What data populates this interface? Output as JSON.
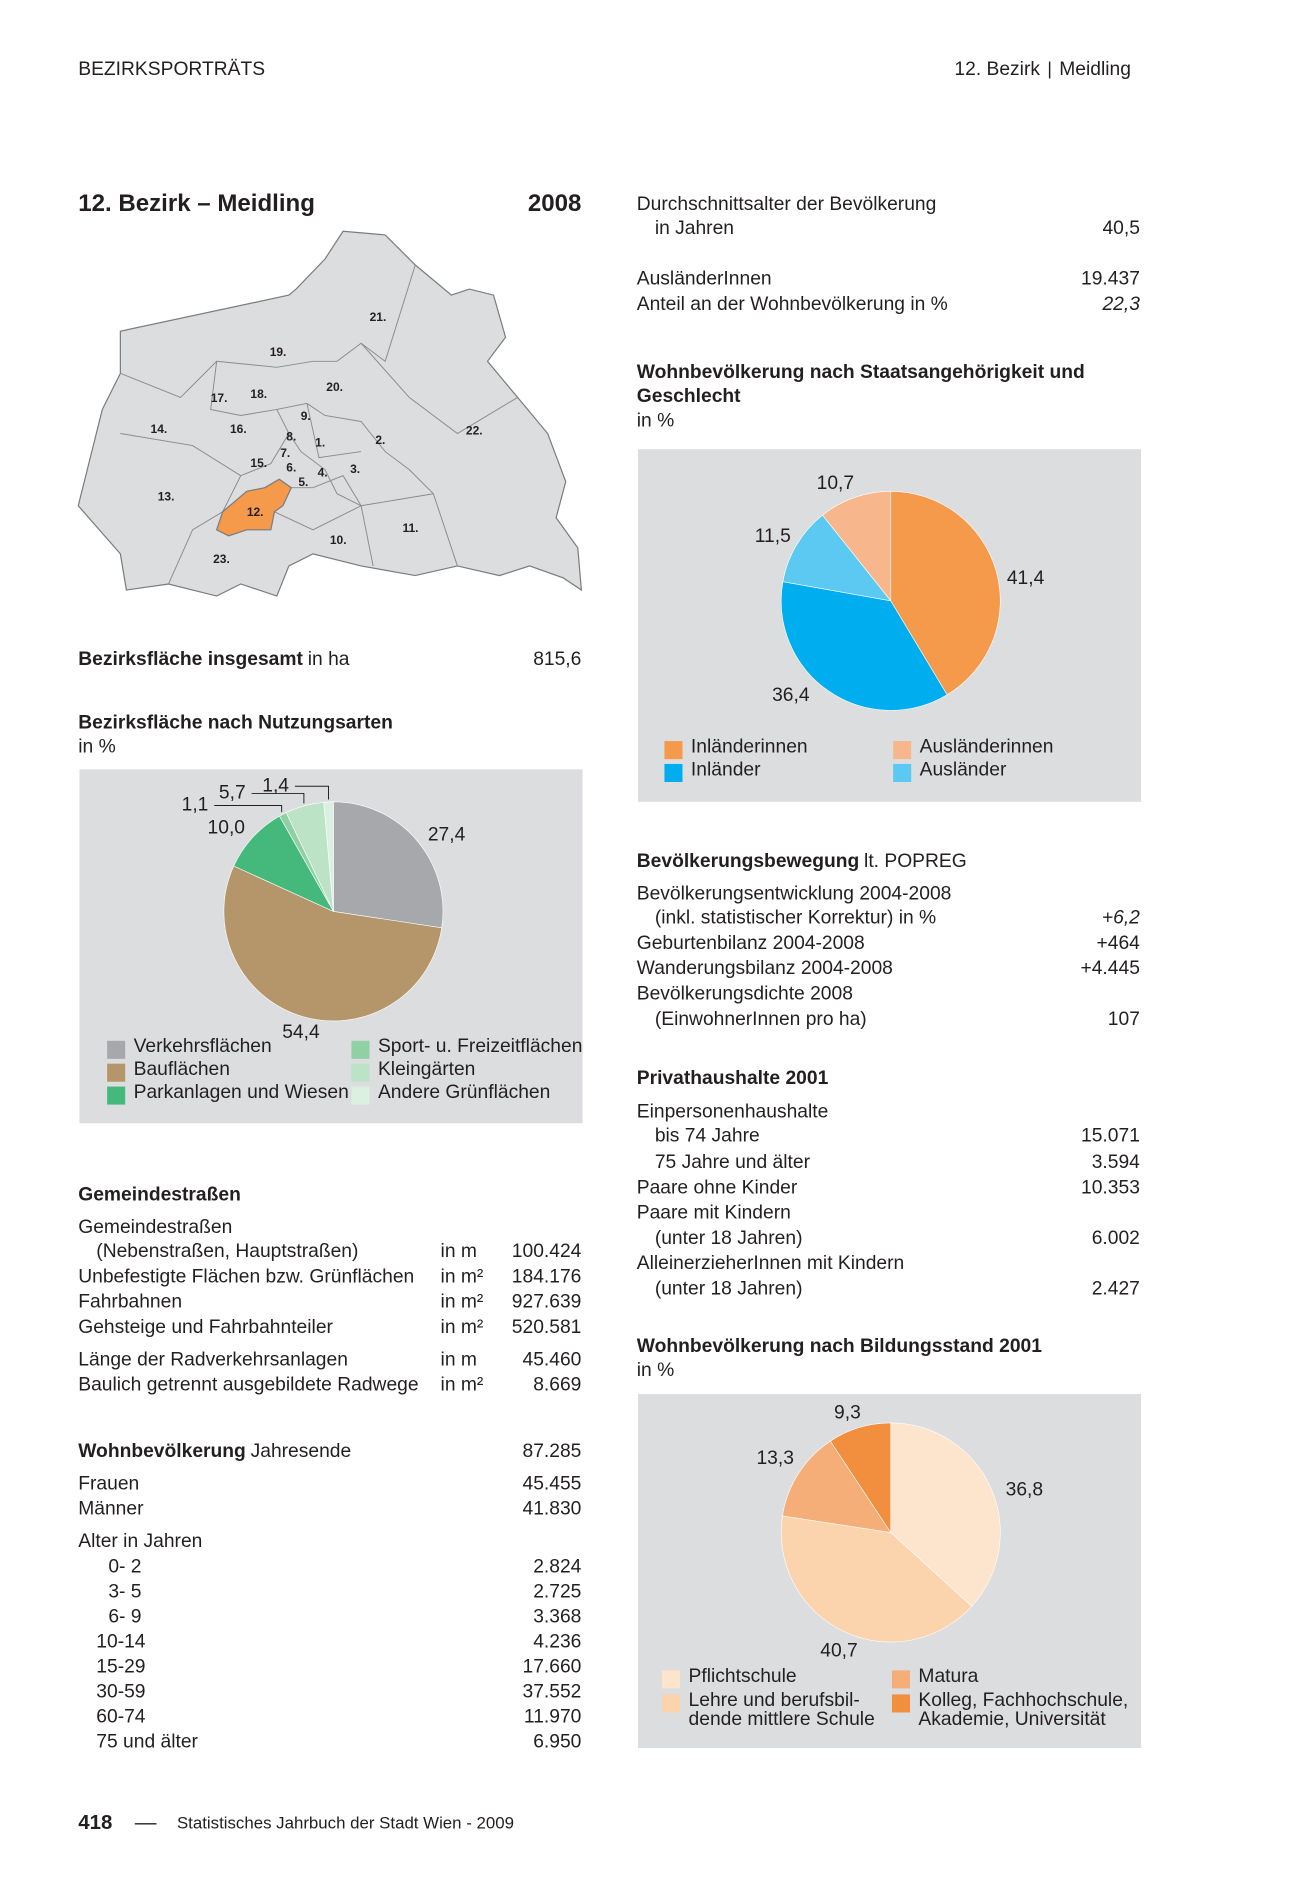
{
  "header": {
    "section": "BEZIRKSPORTRÄTS",
    "district": "12. Bezirk",
    "name": "Meidling"
  },
  "title": "12. Bezirk – Meidling",
  "year": "2008",
  "map_labels": [
    "1.",
    "2.",
    "3.",
    "4.",
    "5.",
    "6.",
    "7.",
    "8.",
    "9.",
    "10.",
    "11.",
    "12.",
    "13.",
    "14.",
    "15.",
    "16.",
    "17.",
    "18.",
    "19.",
    "20.",
    "21.",
    "22.",
    "23."
  ],
  "area": {
    "label": "Bezirksfläche insgesamt",
    "unit": "in ha",
    "value": "815,6"
  },
  "streets": {
    "heading": "Gemeindestraßen",
    "rows": [
      {
        "label": "Gemeindestraßen"
      },
      {
        "label": "(Nebenstraßen, Hauptstraßen)",
        "unit": "in m",
        "value": "100.424"
      },
      {
        "label": "Unbefestigte Flächen bzw. Grünflächen",
        "unit": "in m²",
        "value": "184.176"
      },
      {
        "label": "Fahrbahnen",
        "unit": "in m²",
        "value": "927.639"
      },
      {
        "label": "Gehsteige und Fahrbahnteiler",
        "unit": "in m²",
        "value": "520.581"
      },
      {
        "label": "Länge der Radverkehrsanlagen",
        "unit": "in m",
        "value": "45.460"
      },
      {
        "label": "Baulich getrennt ausgebildete Radwege",
        "unit": "in m²",
        "value": "8.669"
      }
    ]
  },
  "population": {
    "label": "Wohnbevölkerung",
    "note": "Jahresende",
    "value": "87.285",
    "rows": [
      {
        "label": "Frauen",
        "value": "45.455"
      },
      {
        "label": "Männer",
        "value": "41.830"
      }
    ],
    "age_heading": "Alter in Jahren",
    "ages": [
      {
        "label": "0- 2",
        "value": "2.824"
      },
      {
        "label": "3- 5",
        "value": "2.725"
      },
      {
        "label": "6- 9",
        "value": "3.368"
      },
      {
        "label": "10-14",
        "value": "4.236"
      },
      {
        "label": "15-29",
        "value": "17.660"
      },
      {
        "label": "30-59",
        "value": "37.552"
      },
      {
        "label": "60-74",
        "value": "11.970"
      },
      {
        "label": "75 und älter",
        "value": "6.950"
      }
    ]
  },
  "average_age": {
    "label": "Durchschnittsalter der Bevölkerung",
    "sub": "in Jahren",
    "value": "40,5"
  },
  "foreigners": {
    "label": "AusländerInnen",
    "value": "19.437",
    "share_label": "Anteil an der Wohnbevölkerung in %",
    "share": "22,3"
  },
  "movement": {
    "label": "Bevölkerungsbewegung",
    "note": "lt. POPREG",
    "rows": [
      {
        "label": "Bevölkerungsentwicklung 2004-2008"
      },
      {
        "label": "(inkl. statistischer Korrektur) in %",
        "value": "+6,2"
      },
      {
        "label": "Geburtenbilanz 2004-2008",
        "value": "+464"
      },
      {
        "label": "Wanderungsbilanz 2004-2008",
        "value": "+4.445"
      },
      {
        "label": "Bevölkerungsdichte 2008"
      },
      {
        "label": "(EinwohnerInnen pro ha)",
        "value": "107"
      }
    ]
  },
  "households": {
    "heading": "Privathaushalte 2001",
    "rows": [
      {
        "label": "Einpersonenhaushalte"
      },
      {
        "label": "bis 74 Jahre",
        "value": "15.071"
      },
      {
        "label": "75 Jahre und älter",
        "value": "3.594"
      },
      {
        "label": "Paare ohne Kinder",
        "value": "10.353"
      },
      {
        "label": "Paare mit Kindern"
      },
      {
        "label": "(unter 18 Jahren)",
        "value": "6.002"
      },
      {
        "label": "AlleinerzieherInnen mit Kindern"
      },
      {
        "label": "(unter 18 Jahren)",
        "value": "2.427"
      }
    ]
  },
  "chart_data": [
    {
      "type": "pie",
      "title": "Bezirksfläche nach Nutzungsarten",
      "subtitle": "in %",
      "categories": [
        "Verkehrsflächen",
        "Bauflächen",
        "Parkanlagen und Wiesen",
        "Sport- u. Freizeitflächen",
        "Kleingärten",
        "Andere Grünflächen"
      ],
      "values": [
        27.4,
        54.4,
        10.0,
        1.1,
        5.7,
        1.4
      ],
      "value_labels": [
        "27,4",
        "54,4",
        "10,0",
        "1,1",
        "5,7",
        "1,4"
      ],
      "colors": [
        "#a7a8ab",
        "#b5966a",
        "#45b97c",
        "#8fd0a4",
        "#bde3c7",
        "#dcf0e2"
      ]
    },
    {
      "type": "pie",
      "title": "Wohnbevölkerung nach Staatsangehörigkeit und Geschlecht",
      "subtitle": "in %",
      "categories": [
        "Inländerinnen",
        "Inländer",
        "Ausländer",
        "Ausländerinnen"
      ],
      "values": [
        41.4,
        36.4,
        11.5,
        10.7
      ],
      "value_labels": [
        "41,4",
        "36,4",
        "11,5",
        "10,7"
      ],
      "colors": [
        "#f5994b",
        "#00aeef",
        "#5bc9f1",
        "#f7b68b"
      ]
    },
    {
      "type": "pie",
      "title": "Wohnbevölkerung nach Bildungsstand 2001",
      "subtitle": "in %",
      "categories": [
        "Pflichtschule",
        "Lehre und berufsbil-\ndende mittlere Schule",
        "Matura",
        "Kolleg, Fachhochschule,\nAkademie, Universität"
      ],
      "values": [
        36.8,
        40.7,
        13.3,
        9.3
      ],
      "value_labels": [
        "36,8",
        "40,7",
        "13,3",
        "9,3"
      ],
      "colors": [
        "#fde4cd",
        "#fbd3ad",
        "#f6ae78",
        "#f18f3f"
      ]
    }
  ],
  "footer": {
    "page": "418",
    "source": "Statistisches Jahrbuch der Stadt Wien - 2009"
  }
}
